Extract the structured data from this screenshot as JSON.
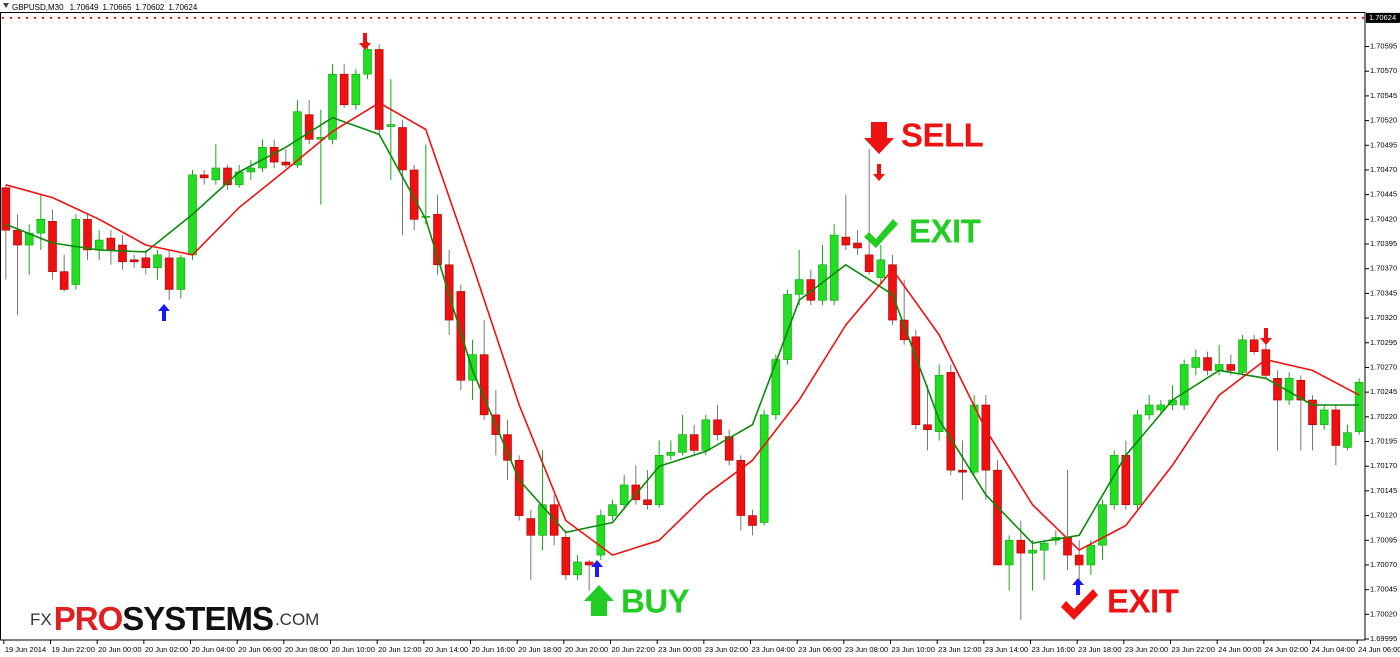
{
  "chart_data": {
    "type": "candlestick",
    "title": "GBPUSD,M30",
    "header_values": [
      1.70649,
      1.70665,
      1.70602,
      1.70624
    ],
    "current_price": 1.70624,
    "ylim": [
      1.69994,
      1.70632
    ],
    "yticks": [
      1.70595,
      {
        "value": 1.7057,
        "label": "1.70570"
      },
      1.70545,
      {
        "value": 1.7052,
        "label": "1.70520"
      },
      1.70495,
      {
        "value": 1.7047,
        "label": "1.70470"
      },
      1.70445,
      {
        "value": 1.7042,
        "label": "1.70420"
      },
      1.70395,
      {
        "value": 1.7037,
        "label": "1.70370"
      },
      1.70345,
      {
        "value": 1.7032,
        "label": "1.70320"
      },
      1.70295,
      {
        "value": 1.7027,
        "label": "1.70270"
      },
      1.70245,
      {
        "value": 1.7022,
        "label": "1.70220"
      },
      1.70195,
      {
        "value": 1.7017,
        "label": "1.70170"
      },
      1.70145,
      {
        "value": 1.7012,
        "label": "1.70120"
      },
      1.70095,
      {
        "value": 1.7007,
        "label": "1.70070"
      },
      1.70045,
      {
        "value": 1.7002,
        "label": "1.70020"
      },
      1.69995
    ],
    "grid": false,
    "xtick_labels": [
      "19 Jun 2014",
      "19 Jun 22:00",
      "20 Jun 00:00",
      "20 Jun 02:00",
      "20 Jun 04:00",
      "20 Jun 06:00",
      "20 Jun 08:00",
      "20 Jun 10:00",
      "20 Jun 12:00",
      "20 Jun 14:00",
      "20 Jun 16:00",
      "20 Jun 18:00",
      "20 Jun 20:00",
      "20 Jun 22:00",
      "23 Jun 00:00",
      "23 Jun 02:00",
      "23 Jun 04:00",
      "23 Jun 06:00",
      "23 Jun 08:00",
      "23 Jun 10:00",
      "23 Jun 12:00",
      "23 Jun 14:00",
      "23 Jun 16:00",
      "23 Jun 18:00",
      "23 Jun 20:00",
      "23 Jun 22:00",
      "24 Jun 00:00",
      "24 Jun 02:00",
      "24 Jun 04:00",
      "24 Jun 06:00"
    ],
    "up_color": "#22dd22",
    "down_color": "#ee1111",
    "ohlc": [
      [
        1.70452,
        1.70455,
        1.70359,
        1.70409
      ],
      [
        1.70409,
        1.70425,
        1.70323,
        1.70394
      ],
      [
        1.70394,
        1.70415,
        1.70364,
        1.70406
      ],
      [
        1.70406,
        1.70445,
        1.70389,
        1.7042
      ],
      [
        1.70418,
        1.7043,
        1.70359,
        1.70367
      ],
      [
        1.70367,
        1.70384,
        1.70347,
        1.70349
      ],
      [
        1.70354,
        1.70425,
        1.70349,
        1.7042
      ],
      [
        1.7042,
        1.70425,
        1.70379,
        1.70389
      ],
      [
        1.70389,
        1.70409,
        1.70379,
        1.70399
      ],
      [
        1.70401,
        1.70409,
        1.70374,
        1.70389
      ],
      [
        1.70394,
        1.70404,
        1.70369,
        1.70377
      ],
      [
        1.70379,
        1.70384,
        1.70371,
        1.70377
      ],
      [
        1.70381,
        1.70389,
        1.70364,
        1.70371
      ],
      [
        1.70371,
        1.70389,
        1.70359,
        1.70384
      ],
      [
        1.70381,
        1.70389,
        1.70338,
        1.70349
      ],
      [
        1.70349,
        1.70384,
        1.7034,
        1.70381
      ],
      [
        1.70384,
        1.7047,
        1.70379,
        1.70465
      ],
      [
        1.70465,
        1.7047,
        1.70455,
        1.70462
      ],
      [
        1.7046,
        1.70496,
        1.70455,
        1.70472
      ],
      [
        1.70472,
        1.70475,
        1.7045,
        1.70455
      ],
      [
        1.70455,
        1.70475,
        1.70452,
        1.70468
      ],
      [
        1.70468,
        1.7048,
        1.7046,
        1.70472
      ],
      [
        1.70472,
        1.70501,
        1.70468,
        1.70493
      ],
      [
        1.70493,
        1.70501,
        1.70472,
        1.70478
      ],
      [
        1.70478,
        1.70491,
        1.70472,
        1.70475
      ],
      [
        1.70475,
        1.70541,
        1.70472,
        1.70529
      ],
      [
        1.70526,
        1.70541,
        1.70496,
        1.70501
      ],
      [
        1.70501,
        1.70531,
        1.70435,
        1.70503
      ],
      [
        1.70501,
        1.70577,
        1.70496,
        1.70567
      ],
      [
        1.70567,
        1.70577,
        1.70533,
        1.70536
      ],
      [
        1.70536,
        1.70572,
        1.70531,
        1.70567
      ],
      [
        1.70567,
        1.706,
        1.70562,
        1.70592
      ],
      [
        1.70592,
        1.70597,
        1.70506,
        1.70511
      ],
      [
        1.70514,
        1.70562,
        1.7046,
        1.70516
      ],
      [
        1.70513,
        1.70521,
        1.70404,
        1.7047
      ],
      [
        1.7047,
        1.70475,
        1.70409,
        1.7042
      ],
      [
        1.70422,
        1.70496,
        1.70415,
        1.70423
      ],
      [
        1.70425,
        1.70445,
        1.70364,
        1.70374
      ],
      [
        1.70374,
        1.70389,
        1.70303,
        1.70318
      ],
      [
        1.70347,
        1.70354,
        1.70247,
        1.70257
      ],
      [
        1.70257,
        1.70298,
        1.70237,
        1.70283
      ],
      [
        1.70283,
        1.70318,
        1.70217,
        1.70222
      ],
      [
        1.70222,
        1.70247,
        1.70181,
        1.70202
      ],
      [
        1.70202,
        1.70217,
        1.70156,
        1.70176
      ],
      [
        1.70176,
        1.70181,
        1.70115,
        1.7012
      ],
      [
        1.70117,
        1.70126,
        1.70055,
        1.701
      ],
      [
        1.701,
        1.70186,
        1.70085,
        1.70131
      ],
      [
        1.70131,
        1.70141,
        1.7009,
        1.701
      ],
      [
        1.70098,
        1.70105,
        1.70055,
        1.7006
      ],
      [
        1.7006,
        1.7008,
        1.70055,
        1.70073
      ],
      [
        1.70073,
        1.70075,
        1.70044,
        1.7007
      ],
      [
        1.7008,
        1.70126,
        1.70075,
        1.7012
      ],
      [
        1.7012,
        1.70136,
        1.70115,
        1.70131
      ],
      [
        1.70131,
        1.70161,
        1.70126,
        1.70151
      ],
      [
        1.70151,
        1.70171,
        1.70131,
        1.70136
      ],
      [
        1.70136,
        1.70166,
        1.70126,
        1.70131
      ],
      [
        1.70131,
        1.70196,
        1.70128,
        1.70181
      ],
      [
        1.70181,
        1.70196,
        1.70176,
        1.70184
      ],
      [
        1.70184,
        1.70222,
        1.70181,
        1.70202
      ],
      [
        1.70202,
        1.70212,
        1.70181,
        1.70186
      ],
      [
        1.70186,
        1.70222,
        1.70181,
        1.70217
      ],
      [
        1.70217,
        1.70232,
        1.70196,
        1.70202
      ],
      [
        1.702,
        1.70207,
        1.70171,
        1.70176
      ],
      [
        1.70176,
        1.70181,
        1.70105,
        1.7012
      ],
      [
        1.7012,
        1.70126,
        1.701,
        1.7011
      ],
      [
        1.70113,
        1.70227,
        1.7011,
        1.70222
      ],
      [
        1.70222,
        1.70283,
        1.70217,
        1.70278
      ],
      [
        1.70278,
        1.70349,
        1.70273,
        1.70344
      ],
      [
        1.70344,
        1.70389,
        1.70333,
        1.70359
      ],
      [
        1.70359,
        1.70369,
        1.70333,
        1.70338
      ],
      [
        1.70338,
        1.70394,
        1.70333,
        1.70374
      ],
      [
        1.70338,
        1.70415,
        1.70333,
        1.70404
      ],
      [
        1.70402,
        1.70445,
        1.70389,
        1.70394
      ],
      [
        1.70396,
        1.70409,
        1.70384,
        1.70391
      ],
      [
        1.70384,
        1.70491,
        1.70364,
        1.70367
      ],
      [
        1.70361,
        1.70394,
        1.70354,
        1.70379
      ],
      [
        1.70374,
        1.70384,
        1.70313,
        1.70318
      ],
      [
        1.70318,
        1.70359,
        1.70293,
        1.70298
      ],
      [
        1.70301,
        1.70308,
        1.70207,
        1.70212
      ],
      [
        1.70212,
        1.70252,
        1.70186,
        1.70207
      ],
      [
        1.70205,
        1.70273,
        1.70196,
        1.70262
      ],
      [
        1.70265,
        1.70273,
        1.70161,
        1.70166
      ],
      [
        1.70166,
        1.70196,
        1.70136,
        1.70164
      ],
      [
        1.70164,
        1.70242,
        1.70161,
        1.70232
      ],
      [
        1.70232,
        1.70242,
        1.70136,
        1.70166
      ],
      [
        1.70166,
        1.70176,
        1.7007,
        1.7007
      ],
      [
        1.7007,
        1.701,
        1.70044,
        1.70095
      ],
      [
        1.70095,
        1.70115,
        1.70014,
        1.70082
      ],
      [
        1.70082,
        1.70095,
        1.70044,
        1.70085
      ],
      [
        1.70085,
        1.70095,
        1.70055,
        1.70092
      ],
      [
        1.70095,
        1.70105,
        1.7009,
        1.70098
      ],
      [
        1.70098,
        1.70166,
        1.70065,
        1.7008
      ],
      [
        1.7008,
        1.70095,
        1.70055,
        1.7007
      ],
      [
        1.7007,
        1.70095,
        1.7006,
        1.7009
      ],
      [
        1.7009,
        1.70136,
        1.70075,
        1.70131
      ],
      [
        1.70131,
        1.70186,
        1.70126,
        1.70181
      ],
      [
        1.70181,
        1.70196,
        1.70126,
        1.70131
      ],
      [
        1.70131,
        1.70227,
        1.70126,
        1.70222
      ],
      [
        1.70222,
        1.70242,
        1.70217,
        1.70232
      ],
      [
        1.70227,
        1.70237,
        1.70222,
        1.70232
      ],
      [
        1.70232,
        1.70252,
        1.70227,
        1.70237
      ],
      [
        1.70232,
        1.70278,
        1.70227,
        1.70273
      ],
      [
        1.7027,
        1.70288,
        1.70262,
        1.7028
      ],
      [
        1.7028,
        1.70286,
        1.70262,
        1.70267
      ],
      [
        1.70267,
        1.70293,
        1.70262,
        1.70273
      ],
      [
        1.70273,
        1.70283,
        1.70262,
        1.70267
      ],
      [
        1.70265,
        1.70303,
        1.70262,
        1.70298
      ],
      [
        1.70298,
        1.70303,
        1.70283,
        1.70286
      ],
      [
        1.70288,
        1.70293,
        1.70259,
        1.70262
      ],
      [
        1.70259,
        1.70267,
        1.70186,
        1.70237
      ],
      [
        1.70237,
        1.70265,
        1.70232,
        1.70259
      ],
      [
        1.70257,
        1.70262,
        1.70186,
        1.70237
      ],
      [
        1.70237,
        1.70242,
        1.70186,
        1.70212
      ],
      [
        1.70212,
        1.70232,
        1.70207,
        1.70227
      ],
      [
        1.70227,
        1.70232,
        1.70171,
        1.70191
      ],
      [
        1.70189,
        1.70212,
        1.70186,
        1.70204
      ],
      [
        1.70205,
        1.70259,
        1.70202,
        1.70255
      ]
    ],
    "series": [
      {
        "color": "#0a8a0a",
        "x": [
          0,
          4,
          8,
          12,
          16,
          20,
          24,
          28,
          32,
          36,
          40,
          44,
          48,
          52,
          56,
          60,
          64,
          68,
          72,
          76,
          80,
          84,
          88,
          92,
          96,
          100,
          104,
          108,
          112,
          116
        ],
        "values": [
          1.70415,
          1.70396,
          1.70389,
          1.70387,
          1.70425,
          1.70468,
          1.70493,
          1.70523,
          1.70506,
          1.7042,
          1.70267,
          1.70156,
          1.70103,
          1.70113,
          1.7017,
          1.70185,
          1.70212,
          1.70338,
          1.70374,
          1.70344,
          1.70217,
          1.70141,
          1.70092,
          1.701,
          1.70181,
          1.70237,
          1.70267,
          1.70259,
          1.70232,
          1.70232
        ]
      },
      {
        "color": "#ee1111",
        "x": [
          0,
          4,
          8,
          12,
          16,
          20,
          24,
          28,
          32,
          36,
          40,
          44,
          48,
          52,
          56,
          60,
          64,
          68,
          72,
          76,
          80,
          84,
          88,
          92,
          96,
          100,
          104,
          108,
          112,
          116
        ],
        "values": [
          1.70455,
          1.70442,
          1.7042,
          1.70394,
          1.70384,
          1.70432,
          1.7047,
          1.70509,
          1.70538,
          1.70511,
          1.70374,
          1.70232,
          1.70115,
          1.7008,
          1.70095,
          1.70141,
          1.70176,
          1.70237,
          1.70313,
          1.70369,
          1.70303,
          1.70207,
          1.70131,
          1.70085,
          1.7011,
          1.70171,
          1.70242,
          1.70278,
          1.70267,
          1.70242
        ]
      }
    ],
    "annotations": [
      "SELL",
      "EXIT",
      "BUY",
      "EXIT"
    ],
    "logo": {
      "prefix": "FX",
      "brand_red": "PRO",
      "brand_black": "SYSTEMS",
      "suffix": ".COM"
    }
  }
}
